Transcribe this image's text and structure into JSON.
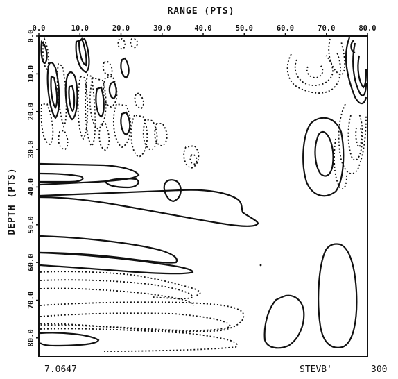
{
  "chart_data": {
    "type": "contour",
    "xlabel": "RANGE (PTS)",
    "ylabel": "DEPTH (PTS)",
    "xlim": [
      0,
      80
    ],
    "ylim": [
      0,
      85
    ],
    "x_ticks": [
      "0.0",
      "10.0",
      "20.0",
      "30.0",
      "40.0",
      "50.0",
      "60.0",
      "70.0",
      "80.0"
    ],
    "y_ticks": [
      "0.0",
      "10.0",
      "20.0",
      "30.0",
      "40.0",
      "50.0",
      "60.0",
      "70.0",
      "80.0"
    ],
    "x_axis_position": "top",
    "grid": false,
    "line_styles": {
      "positive": "solid",
      "negative": "dotted"
    },
    "footer_left": "7.0647",
    "footer_right": "STEVB'",
    "footer_far_right": "300"
  }
}
